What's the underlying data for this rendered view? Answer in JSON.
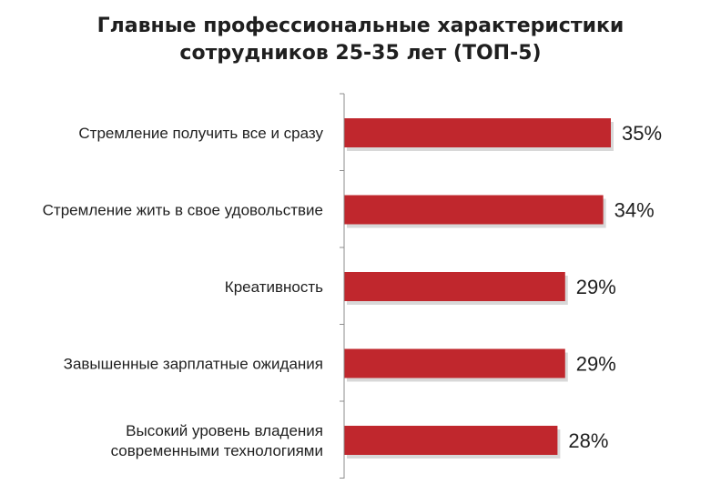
{
  "chart_data": {
    "type": "bar",
    "orientation": "horizontal",
    "title_lines": [
      "Главные профессиональные характеристики",
      "сотрудников 25-35 лет (ТОП-5)"
    ],
    "categories": [
      [
        "Стремление получить все и сразу"
      ],
      [
        "Стремление жить в свое удовольствие"
      ],
      [
        "Креативность"
      ],
      [
        "Завышенные зарплатные ожидания"
      ],
      [
        "Высокий уровень владения",
        "современными технологиями"
      ]
    ],
    "values": [
      35,
      34,
      29,
      29,
      28
    ],
    "data_labels": [
      "35%",
      "34%",
      "29%",
      "29%",
      "28%"
    ],
    "xlim": [
      0,
      35
    ],
    "grid": false,
    "legend": "none",
    "bar_color": "#c0272d",
    "bar_shadow_color": "#b8b8b8",
    "axis_color": "#8c8c8c"
  }
}
